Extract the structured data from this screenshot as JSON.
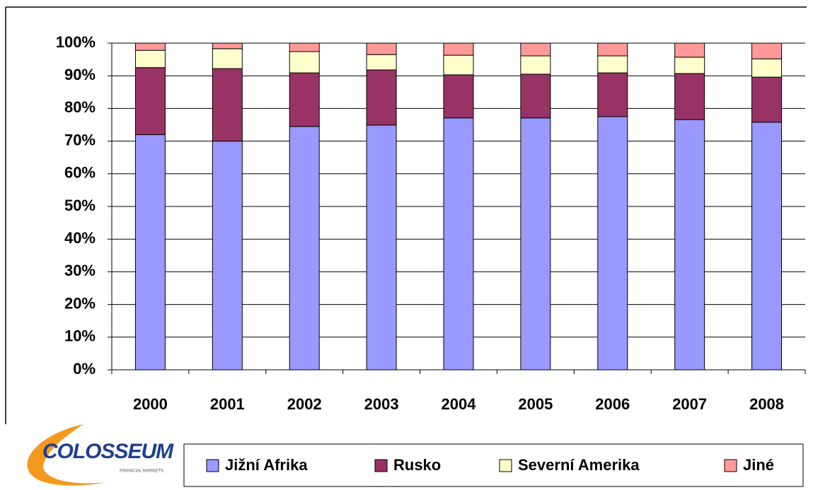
{
  "chart_data": {
    "type": "stacked_bar",
    "categories": [
      "2000",
      "2001",
      "2002",
      "2003",
      "2004",
      "2005",
      "2006",
      "2007",
      "2008"
    ],
    "series": [
      {
        "name": "Jižní Afrika",
        "color": "#9999ff",
        "values": [
          72,
          70,
          74.5,
          74.9,
          77.1,
          77.1,
          77.5,
          76.6,
          75.8
        ]
      },
      {
        "name": "Rusko",
        "color": "#993366",
        "values": [
          20.5,
          22.2,
          16.4,
          16.9,
          13.2,
          13.4,
          13.4,
          14.1,
          13.8
        ]
      },
      {
        "name": "Severní Amerika",
        "color": "#ffffcc",
        "values": [
          5.3,
          6.1,
          6.5,
          4.7,
          6,
          5.6,
          5.2,
          5,
          5.6
        ]
      },
      {
        "name": "Jiné",
        "color": "#ff9999",
        "values": [
          2.2,
          1.7,
          2.6,
          3.5,
          3.7,
          3.9,
          3.9,
          4.3,
          4.8
        ]
      }
    ],
    "ylim": [
      0,
      100
    ],
    "yticks": [
      {
        "value": 0,
        "label": "0%"
      },
      {
        "value": 10,
        "label": "10%"
      },
      {
        "value": 20,
        "label": "20%"
      },
      {
        "value": 30,
        "label": "30%"
      },
      {
        "value": 40,
        "label": "40%"
      },
      {
        "value": 50,
        "label": "50%"
      },
      {
        "value": 60,
        "label": "60%"
      },
      {
        "value": 70,
        "label": "70%"
      },
      {
        "value": 80,
        "label": "80%"
      },
      {
        "value": 90,
        "label": "90%"
      },
      {
        "value": 100,
        "label": "100%"
      }
    ],
    "grid": true,
    "legend": "bottom"
  },
  "logo": {
    "name": "COLOSSEUM",
    "tagline": "FINANCIAL MARKETS"
  }
}
